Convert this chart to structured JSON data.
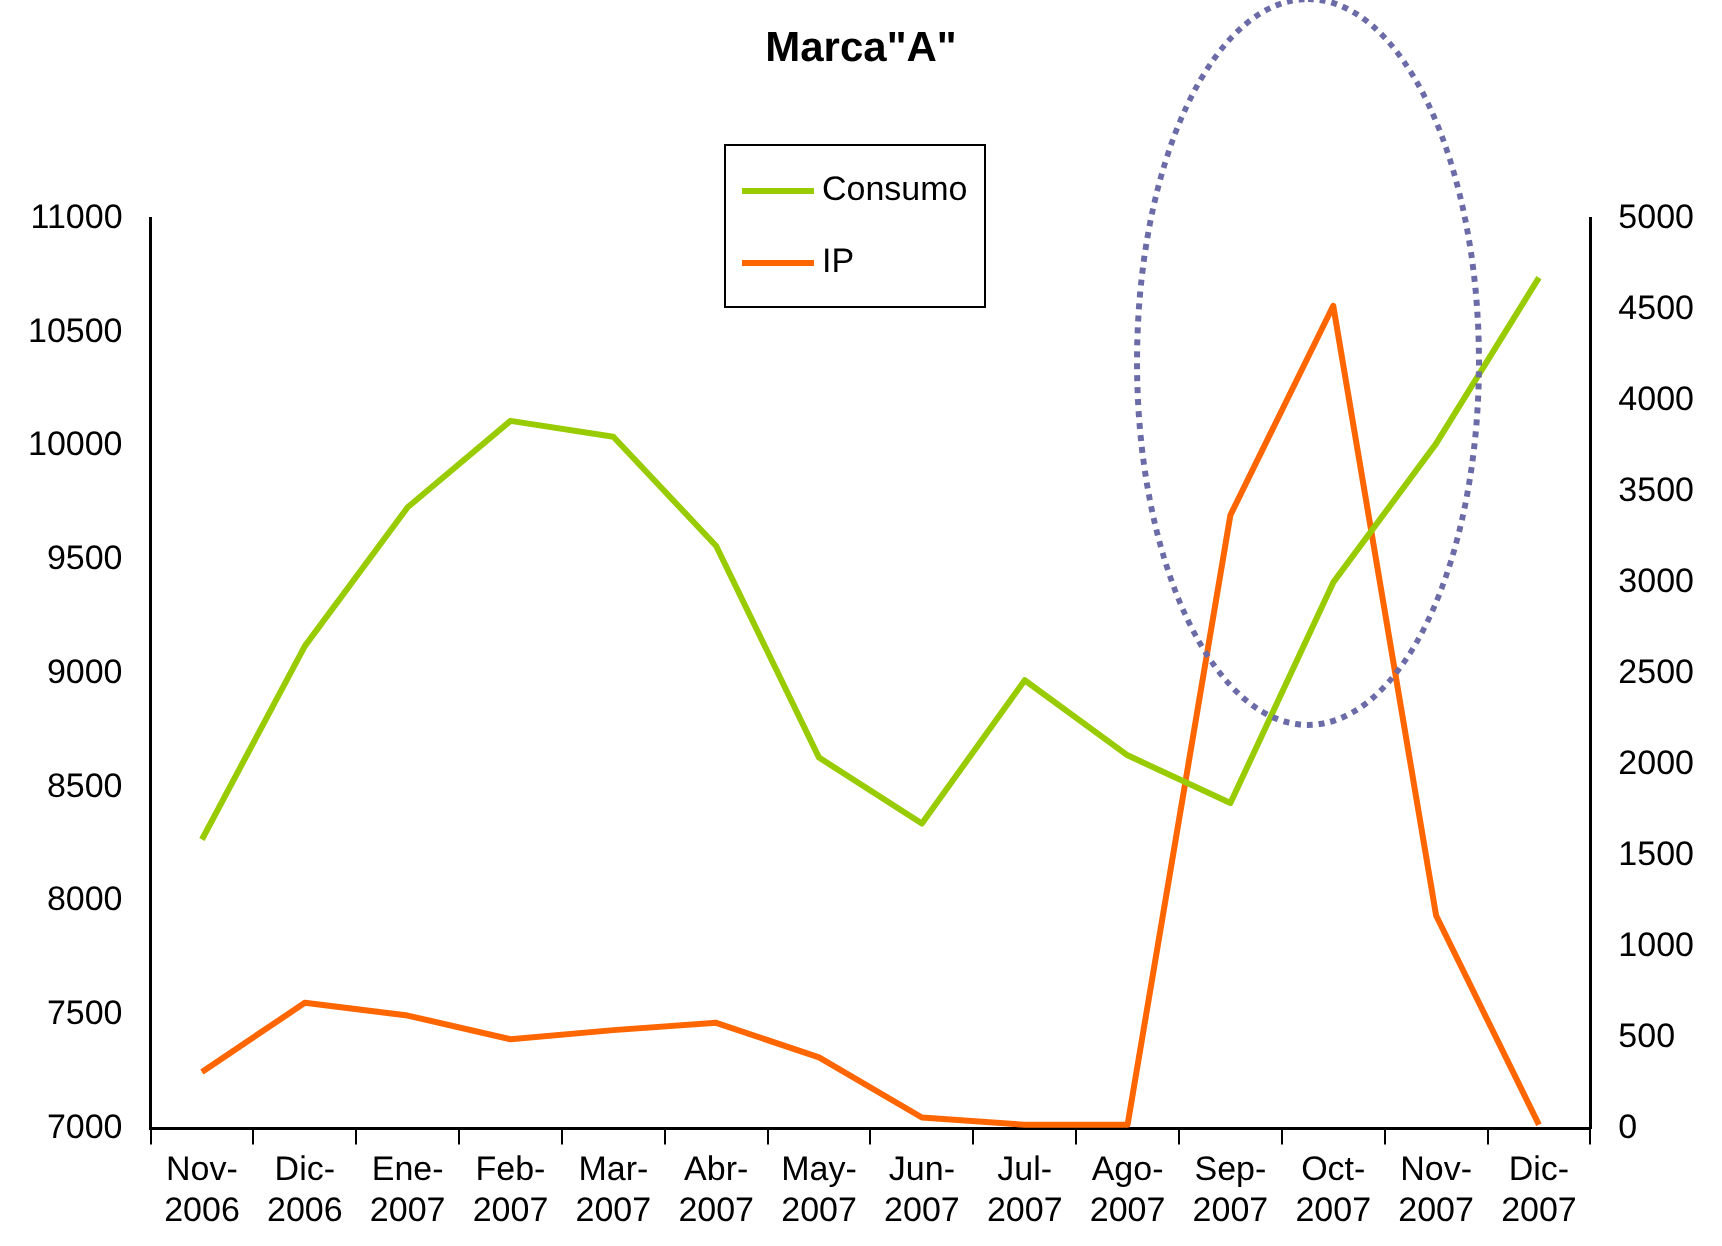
{
  "chart_data": {
    "type": "line",
    "title": "Marca\"A\"",
    "categories": [
      "Nov-2006",
      "Dic-2006",
      "Ene-2007",
      "Feb-2007",
      "Mar-2007",
      "Abr-2007",
      "May-2007",
      "Jun-2007",
      "Jul-2007",
      "Ago-2007",
      "Sep-2007",
      "Oct-2007",
      "Nov-2007",
      "Dic-2007"
    ],
    "series": [
      {
        "name": "Consumo",
        "color": "#99cc00",
        "values": [
          8270,
          9120,
          9730,
          10110,
          10040,
          9560,
          8630,
          8340,
          8970,
          8640,
          8430,
          9400,
          10010,
          10740
        ]
      },
      {
        "name": "IP",
        "color": "#ff6600",
        "axis": "y2",
        "values": [
          310,
          690,
          620,
          490,
          540,
          580,
          390,
          60,
          20,
          20,
          3370,
          4520,
          1170,
          20
        ]
      }
    ],
    "ylim": [
      7000,
      11000
    ],
    "yticks": [
      7000,
      7500,
      8000,
      8500,
      9000,
      9500,
      10000,
      10500,
      11000
    ],
    "y2lim": [
      0,
      5000
    ],
    "y2ticks": [
      0,
      500,
      1000,
      1500,
      2000,
      2500,
      3000,
      3500,
      4000,
      4500,
      5000
    ],
    "grid": false,
    "legend": "top",
    "marker": "none",
    "line_style": "solid"
  }
}
